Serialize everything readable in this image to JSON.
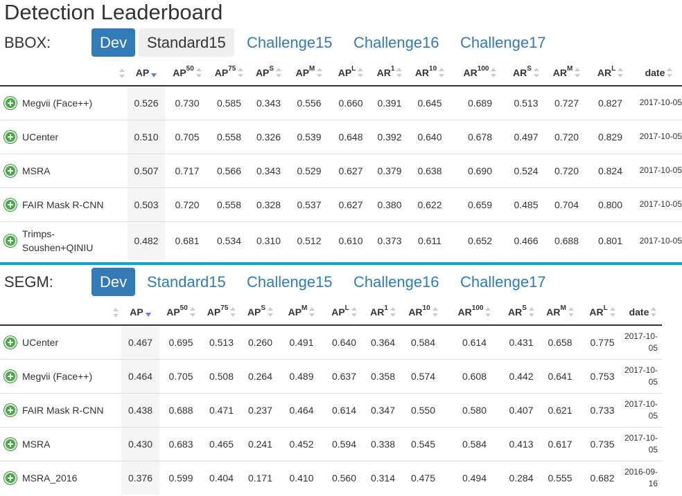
{
  "title": "Detection Leaderboard",
  "tabs": [
    "Dev",
    "Standard15",
    "Challenge15",
    "Challenge16",
    "Challenge17"
  ],
  "columns": [
    {
      "base": "AP",
      "sup": ""
    },
    {
      "base": "AP",
      "sup": "50"
    },
    {
      "base": "AP",
      "sup": "75"
    },
    {
      "base": "AP",
      "sup": "S"
    },
    {
      "base": "AP",
      "sup": "M"
    },
    {
      "base": "AP",
      "sup": "L"
    },
    {
      "base": "AR",
      "sup": "1"
    },
    {
      "base": "AR",
      "sup": "10"
    },
    {
      "base": "AR",
      "sup": "100"
    },
    {
      "base": "AR",
      "sup": "S"
    },
    {
      "base": "AR",
      "sup": "M"
    },
    {
      "base": "AR",
      "sup": "L"
    },
    {
      "base": "date",
      "sup": ""
    }
  ],
  "bbox": {
    "label": "BBOX:",
    "active_tab": 0,
    "hover_tab": 1,
    "rows": [
      {
        "name": "Megvii (Face++)",
        "values": [
          "0.526",
          "0.730",
          "0.585",
          "0.343",
          "0.556",
          "0.660",
          "0.391",
          "0.645",
          "0.689",
          "0.513",
          "0.727",
          "0.827"
        ],
        "date": "2017-10-05"
      },
      {
        "name": "UCenter",
        "values": [
          "0.510",
          "0.705",
          "0.558",
          "0.326",
          "0.539",
          "0.648",
          "0.392",
          "0.640",
          "0.678",
          "0.497",
          "0.720",
          "0.829"
        ],
        "date": "2017-10-05"
      },
      {
        "name": "MSRA",
        "values": [
          "0.507",
          "0.717",
          "0.566",
          "0.343",
          "0.529",
          "0.627",
          "0.379",
          "0.638",
          "0.690",
          "0.524",
          "0.720",
          "0.824"
        ],
        "date": "2017-10-05"
      },
      {
        "name": "FAIR Mask R-CNN",
        "values": [
          "0.503",
          "0.720",
          "0.558",
          "0.328",
          "0.537",
          "0.627",
          "0.380",
          "0.622",
          "0.659",
          "0.485",
          "0.704",
          "0.800"
        ],
        "date": "2017-10-05"
      },
      {
        "name": "Trimps-Soushen+QINIU",
        "values": [
          "0.482",
          "0.681",
          "0.534",
          "0.310",
          "0.512",
          "0.610",
          "0.373",
          "0.611",
          "0.652",
          "0.466",
          "0.688",
          "0.801"
        ],
        "date": "2017-10-05"
      }
    ]
  },
  "segm": {
    "label": "SEGM:",
    "active_tab": 0,
    "hover_tab": -1,
    "rows": [
      {
        "name": "UCenter",
        "values": [
          "0.467",
          "0.695",
          "0.513",
          "0.260",
          "0.491",
          "0.640",
          "0.364",
          "0.584",
          "0.614",
          "0.431",
          "0.658",
          "0.775"
        ],
        "date": "2017-10-05"
      },
      {
        "name": "Megvii (Face++)",
        "values": [
          "0.464",
          "0.705",
          "0.508",
          "0.264",
          "0.489",
          "0.637",
          "0.358",
          "0.574",
          "0.608",
          "0.442",
          "0.641",
          "0.753"
        ],
        "date": "2017-10-05"
      },
      {
        "name": "FAIR Mask R-CNN",
        "values": [
          "0.438",
          "0.688",
          "0.471",
          "0.237",
          "0.464",
          "0.614",
          "0.347",
          "0.550",
          "0.580",
          "0.407",
          "0.621",
          "0.733"
        ],
        "date": "2017-10-05"
      },
      {
        "name": "MSRA",
        "values": [
          "0.430",
          "0.683",
          "0.465",
          "0.241",
          "0.452",
          "0.594",
          "0.338",
          "0.545",
          "0.584",
          "0.413",
          "0.617",
          "0.735"
        ],
        "date": "2017-10-05"
      },
      {
        "name": "MSRA_2016",
        "values": [
          "0.376",
          "0.599",
          "0.404",
          "0.171",
          "0.410",
          "0.560",
          "0.314",
          "0.475",
          "0.494",
          "0.284",
          "0.555",
          "0.682"
        ],
        "date": "2016-09-16"
      }
    ]
  },
  "accent_color": "#337ab7",
  "divider_color": "#0aa3d8",
  "add_icon": "plus-circle-icon"
}
